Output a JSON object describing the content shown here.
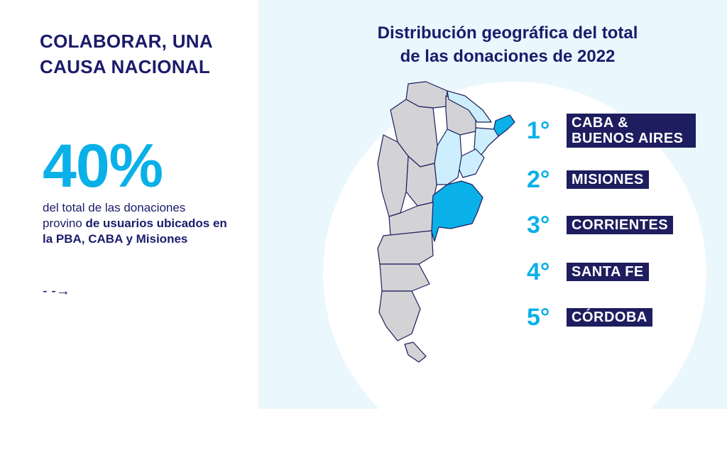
{
  "left": {
    "heading_line1": "COLABORAR, UNA",
    "heading_line2": "CAUSA NACIONAL",
    "stat_value": "40%",
    "desc_plain": "del total de las donaciones provino ",
    "desc_bold": "de usuarios ubicados en la PBA, CABA y Misiones",
    "arrow": "- -→"
  },
  "right": {
    "title_line1": "Distribución geográfica del total",
    "title_line2": "de las donaciones de 2022",
    "ranking": [
      {
        "num": "1°",
        "label_line1": "CABA &",
        "label_line2": "BUENOS AIRES"
      },
      {
        "num": "2°",
        "label": "MISIONES"
      },
      {
        "num": "3°",
        "label": "CORRIENTES"
      },
      {
        "num": "4°",
        "label": "SANTA FE"
      },
      {
        "num": "5°",
        "label": "CÓRDOBA"
      }
    ]
  },
  "colors": {
    "navy": "#1b1b6b",
    "accent": "#0ab0e8",
    "province_gray": "#d3d3d6",
    "province_light_blue": "#cdeefd",
    "province_highlight": "#0ab0e8",
    "panel_bg": "#eaf7fd"
  }
}
